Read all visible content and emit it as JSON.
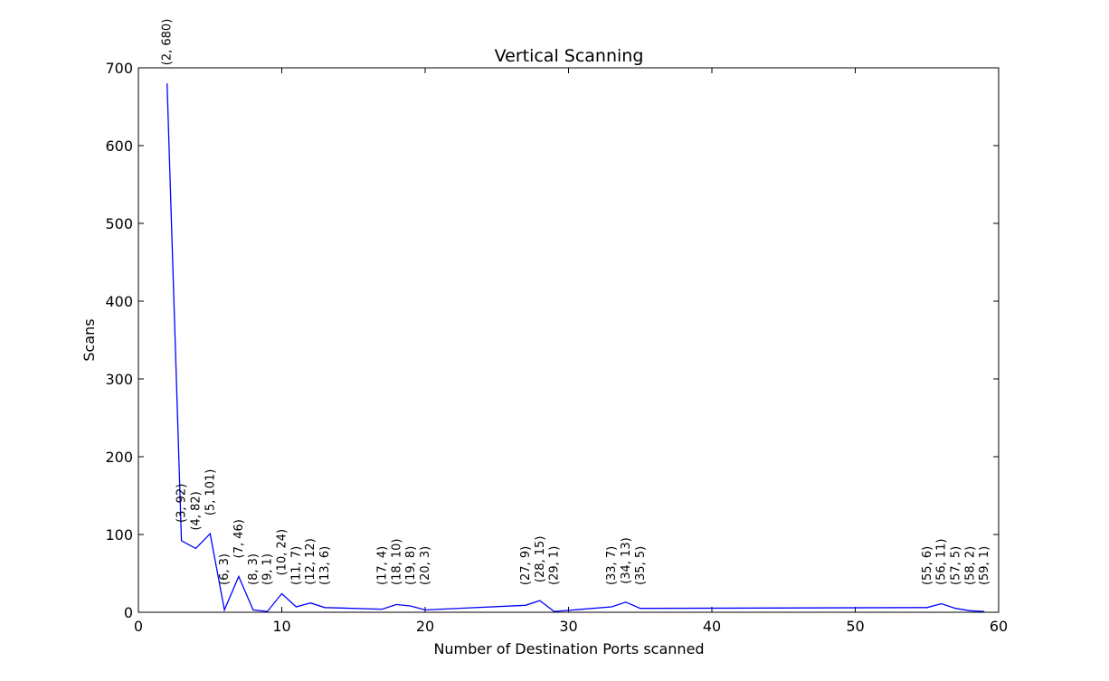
{
  "chart_data": {
    "type": "line",
    "title": "Vertical Scanning",
    "xlabel": "Number of Destination Ports scanned",
    "ylabel": "Scans",
    "xlim": [
      0,
      60
    ],
    "ylim": [
      0,
      700
    ],
    "xticks": [
      0,
      10,
      20,
      30,
      40,
      50,
      60
    ],
    "yticks": [
      0,
      100,
      200,
      300,
      400,
      500,
      600,
      700
    ],
    "grid": false,
    "line_color": "#0000ff",
    "x": [
      2,
      3,
      4,
      5,
      6,
      7,
      8,
      9,
      10,
      11,
      12,
      13,
      17,
      18,
      19,
      20,
      27,
      28,
      29,
      33,
      34,
      35,
      55,
      56,
      57,
      58,
      59
    ],
    "y": [
      680,
      92,
      82,
      101,
      3,
      46,
      3,
      1,
      24,
      7,
      12,
      6,
      4,
      10,
      8,
      3,
      9,
      15,
      1,
      7,
      13,
      5,
      6,
      11,
      5,
      2,
      1
    ],
    "point_labels": [
      "(2, 680)",
      "(3, 92)",
      "(4, 82)",
      "(5, 101)",
      "(6, 3)",
      "(7, 46)",
      "(8, 3)",
      "(9, 1)",
      "(10, 24)",
      "(11, 7)",
      "(12, 12)",
      "(13, 6)",
      "(17, 4)",
      "(18, 10)",
      "(19, 8)",
      "(20, 3)",
      "(27, 9)",
      "(28, 15)",
      "(29, 1)",
      "(33, 7)",
      "(34, 13)",
      "(35, 5)",
      "(55, 6)",
      "(56, 11)",
      "(57, 5)",
      "(58, 2)",
      "(59, 1)"
    ]
  }
}
